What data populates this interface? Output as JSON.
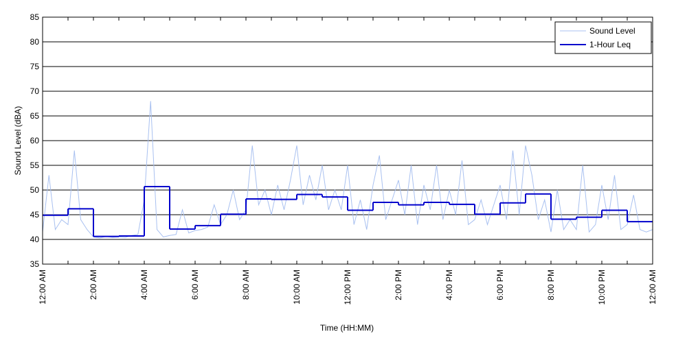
{
  "chart_data": {
    "type": "line",
    "x_label": "Time (HH:MM)",
    "y_label": "Sound Level (dBA)",
    "xlim": [
      0,
      24
    ],
    "ylim": [
      35,
      85
    ],
    "yticks": [
      35,
      40,
      45,
      50,
      55,
      60,
      65,
      70,
      75,
      80,
      85
    ],
    "xticks": [
      {
        "value": 0,
        "label": "12:00 AM"
      },
      {
        "value": 1,
        "label": null
      },
      {
        "value": 2,
        "label": "2:00 AM"
      },
      {
        "value": 3,
        "label": null
      },
      {
        "value": 4,
        "label": "4:00 AM"
      },
      {
        "value": 5,
        "label": null
      },
      {
        "value": 6,
        "label": "6:00 AM"
      },
      {
        "value": 7,
        "label": null
      },
      {
        "value": 8,
        "label": "8:00 AM"
      },
      {
        "value": 9,
        "label": null
      },
      {
        "value": 10,
        "label": "10:00 AM"
      },
      {
        "value": 11,
        "label": null
      },
      {
        "value": 12,
        "label": "12:00 PM"
      },
      {
        "value": 13,
        "label": null
      },
      {
        "value": 14,
        "label": "2:00 PM"
      },
      {
        "value": 15,
        "label": null
      },
      {
        "value": 16,
        "label": "4:00 PM"
      },
      {
        "value": 17,
        "label": null
      },
      {
        "value": 18,
        "label": "6:00 PM"
      },
      {
        "value": 19,
        "label": null
      },
      {
        "value": 20,
        "label": "8:00 PM"
      },
      {
        "value": 21,
        "label": null
      },
      {
        "value": 22,
        "label": "10:00 PM"
      },
      {
        "value": 23,
        "label": null
      },
      {
        "value": 24,
        "label": "12:00 AM"
      }
    ],
    "grid": true,
    "legend": "upper right",
    "series": [
      {
        "name": "Sound Level",
        "color": "#a8c0f0",
        "width": 1,
        "x": [
          0,
          0.25,
          0.5,
          0.75,
          1,
          1.25,
          1.5,
          1.75,
          2,
          2.25,
          2.5,
          2.75,
          3,
          3.25,
          3.5,
          3.75,
          4,
          4.25,
          4.5,
          4.75,
          5,
          5.25,
          5.5,
          5.75,
          6,
          6.25,
          6.5,
          6.75,
          7,
          7.25,
          7.5,
          7.75,
          8,
          8.25,
          8.5,
          8.75,
          9,
          9.25,
          9.5,
          9.75,
          10,
          10.25,
          10.5,
          10.75,
          11,
          11.25,
          11.5,
          11.75,
          12,
          12.25,
          12.5,
          12.75,
          13,
          13.25,
          13.5,
          13.75,
          14,
          14.25,
          14.5,
          14.75,
          15,
          15.25,
          15.5,
          15.75,
          16,
          16.25,
          16.5,
          16.75,
          17,
          17.25,
          17.5,
          17.75,
          18,
          18.25,
          18.5,
          18.75,
          19,
          19.25,
          19.5,
          19.75,
          20,
          20.25,
          20.5,
          20.75,
          21,
          21.25,
          21.5,
          21.75,
          22,
          22.25,
          22.5,
          22.75,
          23,
          23.25,
          23.5,
          23.75,
          24
        ],
        "values": [
          41.5,
          53,
          42,
          44,
          43,
          58,
          44,
          42,
          40.5,
          40.3,
          40.6,
          40.4,
          40.5,
          40.4,
          40.8,
          41,
          48,
          68,
          42,
          40.5,
          40.8,
          41,
          46,
          41.3,
          41.8,
          42,
          42.5,
          47,
          43,
          45,
          50,
          44,
          46,
          59,
          47,
          50,
          45,
          51,
          46,
          52,
          59,
          47,
          53,
          48,
          55,
          46,
          50,
          46,
          55,
          43,
          48,
          42,
          51,
          57,
          44,
          48,
          52,
          45,
          55,
          43,
          51,
          46,
          55,
          44,
          50,
          45,
          56,
          43,
          44,
          48,
          43,
          47,
          51,
          44,
          58,
          45,
          59,
          53,
          44,
          48,
          41.5,
          50,
          42,
          44,
          42,
          55,
          41.5,
          43,
          51,
          44,
          53,
          42,
          43,
          49,
          42,
          41.5,
          42
        ]
      },
      {
        "name": "1-Hour Leq",
        "color": "#0000cc",
        "width": 2,
        "step": true,
        "x": [
          0,
          1,
          2,
          3,
          4,
          5,
          6,
          7,
          8,
          9,
          10,
          11,
          12,
          13,
          14,
          15,
          16,
          17,
          18,
          19,
          20,
          21,
          22,
          23
        ],
        "values": [
          44.9,
          46.2,
          40.6,
          40.7,
          50.7,
          42.1,
          42.8,
          45.1,
          48.2,
          48.1,
          49.1,
          48.6,
          45.9,
          47.5,
          47.0,
          47.5,
          47.1,
          45.1,
          47.4,
          49.2,
          44.1,
          44.5,
          45.9,
          43.6
        ]
      }
    ]
  }
}
